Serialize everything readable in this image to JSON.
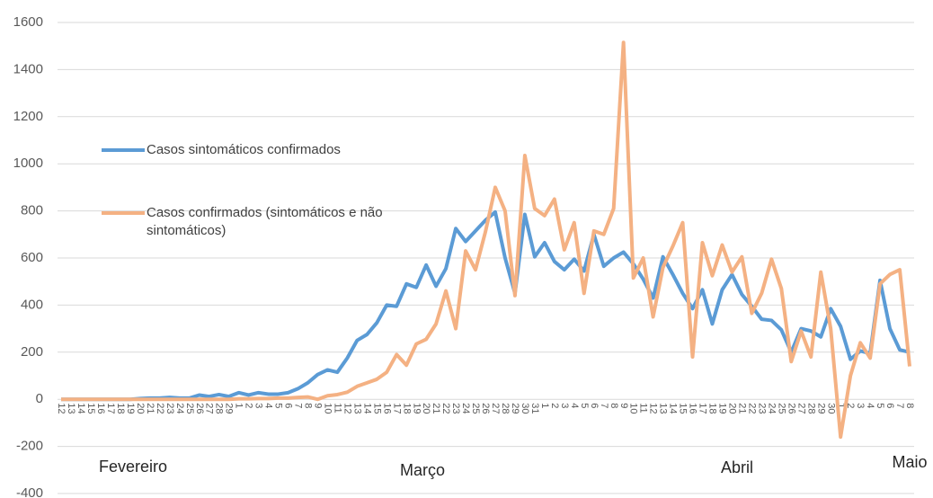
{
  "chart_data": {
    "type": "line",
    "categories": [
      "12",
      "13",
      "14",
      "15",
      "16",
      "17",
      "18",
      "19",
      "20",
      "21",
      "22",
      "23",
      "24",
      "25",
      "26",
      "27",
      "28",
      "29",
      "1",
      "2",
      "3",
      "4",
      "5",
      "6",
      "7",
      "8",
      "9",
      "10",
      "11",
      "12",
      "13",
      "14",
      "15",
      "16",
      "17",
      "18",
      "19",
      "20",
      "21",
      "22",
      "23",
      "24",
      "25",
      "26",
      "27",
      "28",
      "29",
      "30",
      "31",
      "1",
      "2",
      "3",
      "4",
      "5",
      "6",
      "7",
      "8",
      "9",
      "10",
      "11",
      "12",
      "13",
      "14",
      "15",
      "16",
      "17",
      "18",
      "19",
      "20",
      "21",
      "22",
      "23",
      "24",
      "25",
      "26",
      "27",
      "28",
      "29",
      "30",
      "1",
      "2",
      "3",
      "4",
      "5",
      "6",
      "7",
      "8"
    ],
    "month_labels": [
      "Fevereiro",
      "Março",
      "Abril",
      "Maio"
    ],
    "series": [
      {
        "name": "Casos sintomáticos confirmados",
        "color": "#5b9bd5",
        "values": [
          0,
          0,
          0,
          0,
          0,
          0,
          0,
          0,
          3,
          5,
          5,
          8,
          5,
          5,
          18,
          12,
          20,
          12,
          28,
          18,
          28,
          22,
          22,
          28,
          45,
          70,
          105,
          125,
          115,
          175,
          250,
          275,
          325,
          400,
          395,
          490,
          475,
          570,
          480,
          555,
          725,
          670,
          715,
          760,
          795,
          600,
          450,
          785,
          605,
          665,
          585,
          550,
          595,
          545,
          700,
          565,
          600,
          625,
          575,
          510,
          430,
          605,
          530,
          450,
          385,
          465,
          320,
          465,
          530,
          445,
          395,
          340,
          335,
          295,
          200,
          300,
          290,
          265,
          385,
          310,
          170,
          205,
          195,
          505,
          300,
          210,
          200
        ]
      },
      {
        "name": "Casos confirmados (sintomáticos e não sintomáticos)",
        "color": "#f4b183",
        "values": [
          0,
          0,
          0,
          0,
          0,
          0,
          0,
          0,
          0,
          0,
          0,
          0,
          0,
          0,
          0,
          0,
          0,
          0,
          2,
          2,
          3,
          3,
          5,
          5,
          8,
          10,
          0,
          15,
          20,
          30,
          55,
          70,
          85,
          115,
          190,
          145,
          235,
          255,
          320,
          460,
          300,
          630,
          550,
          710,
          900,
          800,
          440,
          1035,
          810,
          780,
          850,
          635,
          750,
          450,
          715,
          700,
          810,
          1515,
          515,
          600,
          350,
          560,
          650,
          750,
          180,
          665,
          525,
          655,
          540,
          605,
          365,
          450,
          595,
          470,
          160,
          290,
          180,
          540,
          300,
          -160,
          100,
          240,
          175,
          490,
          530,
          550,
          140
        ]
      }
    ],
    "ylim": [
      -400,
      1600
    ],
    "yticks": [
      -400,
      -200,
      0,
      200,
      400,
      600,
      800,
      1000,
      1200,
      1400,
      1600
    ],
    "grid": true
  }
}
